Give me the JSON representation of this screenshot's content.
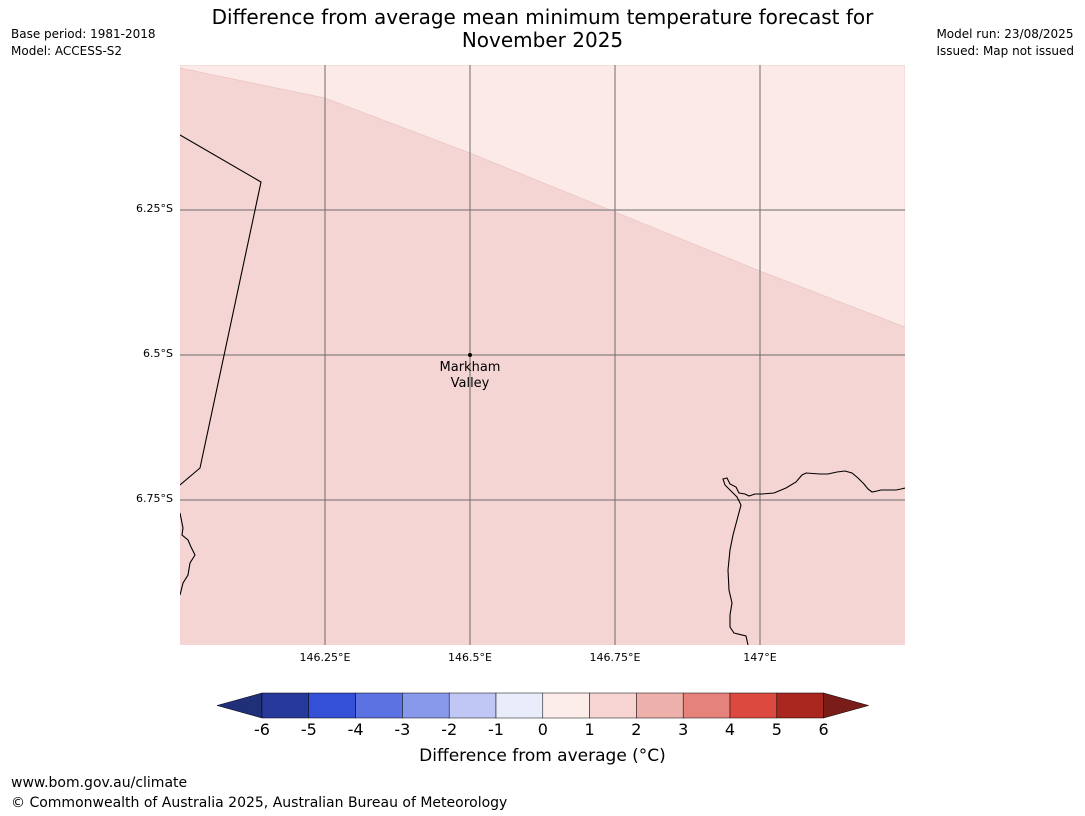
{
  "header": {
    "title_line1": "Difference from average mean minimum temperature forecast for",
    "title_line2": "November 2025",
    "base_period": "Base period: 1981-2018",
    "model": "Model: ACCESS-S2",
    "model_run": "Model run: 23/08/2025",
    "issued": "Issued: Map not issued"
  },
  "map": {
    "lat_labels": [
      "6.25°S",
      "6.5°S",
      "6.75°S"
    ],
    "lon_labels": [
      "146.25°E",
      "146.5°E",
      "146.75°E",
      "147°E"
    ],
    "place": {
      "line1": "Markham",
      "line2": "Valley"
    },
    "colors": {
      "band_1_2": "#f5d5d3",
      "band_0_1": "#fbeae8",
      "gridline": "#6b6b6b",
      "coast": "#000000"
    }
  },
  "colorbar": {
    "ticks": [
      "-6",
      "-5",
      "-4",
      "-3",
      "-2",
      "-1",
      "0",
      "1",
      "2",
      "3",
      "4",
      "5",
      "6"
    ],
    "colors": [
      "#273a9c",
      "#3450d6",
      "#5c72e2",
      "#8898ea",
      "#c1c7f4",
      "#e9ecfb",
      "#fcecea",
      "#f6d4d2",
      "#eeb0ab",
      "#e6827c",
      "#dc4a3f",
      "#a9271f"
    ],
    "under_color": "#1f2f78",
    "over_color": "#7a1c17",
    "label": "Difference from average (°C)"
  },
  "footer": {
    "url": "www.bom.gov.au/climate",
    "copyright": "© Commonwealth of Australia 2025, Australian Bureau of Meteorology"
  }
}
